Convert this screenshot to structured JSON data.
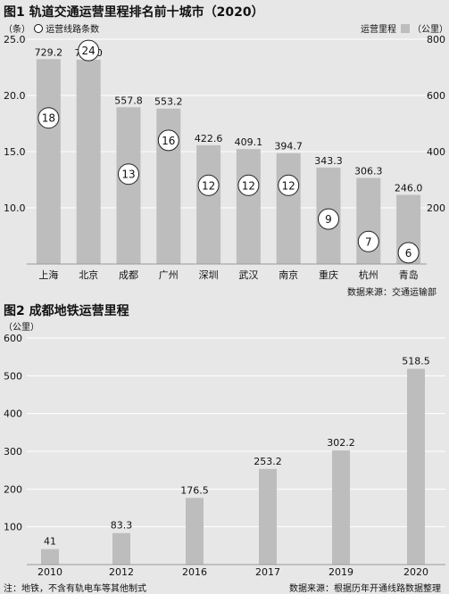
{
  "chart1": {
    "title": "图1 轨道交通运营里程排名前十城市（2020）",
    "left_axis_unit": "（条）",
    "legend_circle_label": "运营线路条数",
    "legend_bar_label": "运营里程",
    "right_axis_unit": "（公里）",
    "source": "数据来源：交通运输部"
  },
  "chart2": {
    "title": "图2 成都地铁运营里程",
    "unit": "（公里）",
    "note": "注：地铁，不含有轨电车等其他制式",
    "source": "数据来源：根据历年开通线路数据整理"
  },
  "chart_data": [
    {
      "type": "bar",
      "title": "图1 轨道交通运营里程排名前十城市（2020）",
      "categories": [
        "上海",
        "北京",
        "成都",
        "广州",
        "深圳",
        "武汉",
        "南京",
        "重庆",
        "杭州",
        "青岛"
      ],
      "series": [
        {
          "name": "运营里程",
          "axis": "right",
          "unit": "公里",
          "values": [
            729.2,
            727.0,
            557.8,
            553.2,
            422.6,
            409.1,
            394.7,
            343.3,
            306.3,
            246.0
          ]
        },
        {
          "name": "运营线路条数",
          "axis": "left",
          "unit": "条",
          "values": [
            18,
            24,
            13,
            16,
            12,
            12,
            12,
            9,
            7,
            6
          ]
        }
      ],
      "y_left": {
        "label": "（条）",
        "ylim": [
          5,
          25
        ],
        "ticks": [
          "25.0",
          "20.0",
          "15.0",
          "10.0"
        ]
      },
      "y_right": {
        "label": "（公里）",
        "ylim": [
          0,
          800
        ],
        "ticks": [
          "800",
          "600",
          "400",
          "200"
        ]
      },
      "grid": true,
      "legend": "top"
    },
    {
      "type": "bar",
      "title": "图2 成都地铁运营里程",
      "categories": [
        "2010",
        "2012",
        "2016",
        "2017",
        "2019",
        "2020"
      ],
      "values": [
        41,
        83.3,
        176.5,
        253.2,
        302.2,
        518.5
      ],
      "ylabel": "（公里）",
      "ylim": [
        0,
        600
      ],
      "yticks": [
        "600",
        "500",
        "400",
        "300",
        "200",
        "100"
      ],
      "grid": true
    }
  ]
}
